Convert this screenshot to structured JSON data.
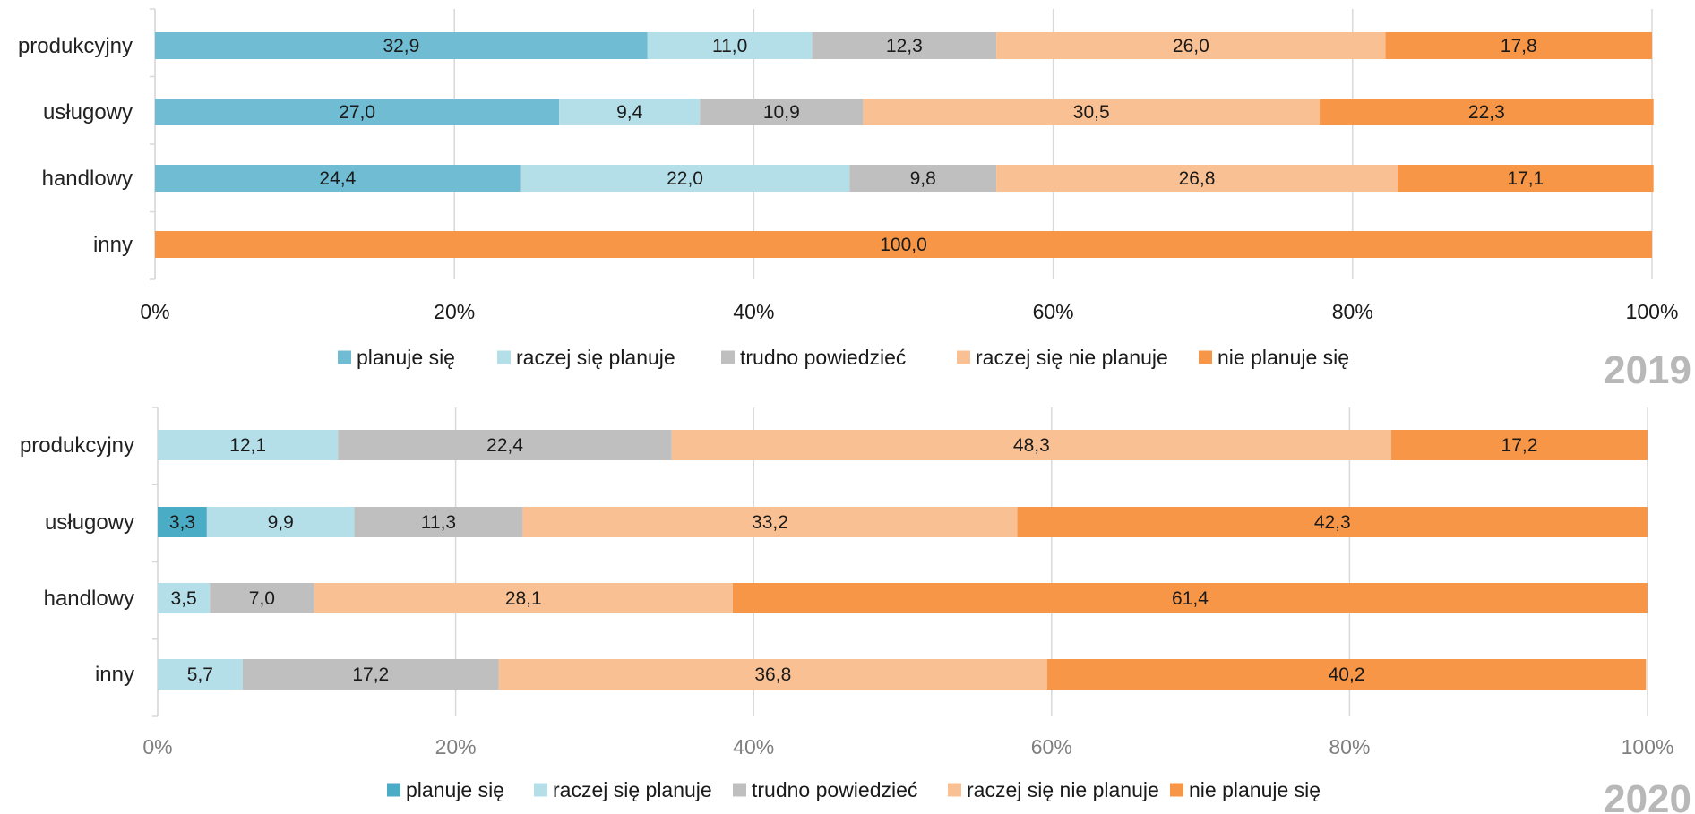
{
  "chart_data": [
    {
      "type": "bar",
      "orientation": "horizontal",
      "stacked": "percent",
      "year_label": "2019",
      "categories": [
        "produkcyjny",
        "usługowy",
        "handlowy",
        "inny"
      ],
      "series": [
        {
          "name": "planuje się",
          "color": "#70bcd3",
          "values": [
            32.9,
            27.0,
            24.4,
            0
          ],
          "labels": [
            "32,9",
            "27,0",
            "24,4",
            ""
          ]
        },
        {
          "name": "raczej się planuje",
          "color": "#b5dfe8",
          "values": [
            11.0,
            9.4,
            22.0,
            0
          ],
          "labels": [
            "11,0",
            "9,4",
            "22,0",
            ""
          ]
        },
        {
          "name": "trudno powiedzieć",
          "color": "#bfbfbf",
          "values": [
            12.3,
            10.9,
            9.8,
            0
          ],
          "labels": [
            "12,3",
            "10,9",
            "9,8",
            ""
          ]
        },
        {
          "name": "raczej się nie planuje",
          "color": "#f9c093",
          "values": [
            26.0,
            30.5,
            26.8,
            0
          ],
          "labels": [
            "26,0",
            "30,5",
            "26,8",
            ""
          ]
        },
        {
          "name": "nie planuje się",
          "color": "#f79646",
          "values": [
            17.8,
            22.3,
            17.1,
            100.0
          ],
          "labels": [
            "17,8",
            "22,3",
            "17,1",
            "100,0"
          ]
        }
      ],
      "xlim": [
        0,
        100
      ],
      "x_ticks": [
        "0%",
        "20%",
        "40%",
        "60%",
        "80%",
        "100%"
      ],
      "tick_color": "#1a1a1a",
      "grid": true,
      "legend_position": "bottom"
    },
    {
      "type": "bar",
      "orientation": "horizontal",
      "stacked": "percent",
      "year_label": "2020",
      "categories": [
        "produkcyjny",
        "usługowy",
        "handlowy",
        "inny"
      ],
      "series": [
        {
          "name": "planuje się",
          "color": "#4bacc6",
          "values": [
            0,
            3.3,
            0,
            0
          ],
          "labels": [
            "",
            "3,3",
            "",
            ""
          ]
        },
        {
          "name": "raczej się planuje",
          "color": "#b5dfe8",
          "values": [
            12.1,
            9.9,
            3.5,
            5.7
          ],
          "labels": [
            "12,1",
            "9,9",
            "3,5",
            "5,7"
          ]
        },
        {
          "name": "trudno powiedzieć",
          "color": "#bfbfbf",
          "values": [
            22.4,
            11.3,
            7.0,
            17.2
          ],
          "labels": [
            "22,4",
            "11,3",
            "7,0",
            "17,2"
          ]
        },
        {
          "name": "raczej się nie planuje",
          "color": "#f9c093",
          "values": [
            48.3,
            33.2,
            28.1,
            36.8
          ],
          "labels": [
            "48,3",
            "33,2",
            "28,1",
            "36,8"
          ]
        },
        {
          "name": "nie planuje się",
          "color": "#f79646",
          "values": [
            17.2,
            42.3,
            61.4,
            40.2
          ],
          "labels": [
            "17,2",
            "42,3",
            "61,4",
            "40,2"
          ]
        }
      ],
      "xlim": [
        0,
        100
      ],
      "x_ticks": [
        "0%",
        "20%",
        "40%",
        "60%",
        "80%",
        "100%"
      ],
      "tick_color": "#7f7f7f",
      "grid": true,
      "legend_position": "bottom"
    }
  ]
}
